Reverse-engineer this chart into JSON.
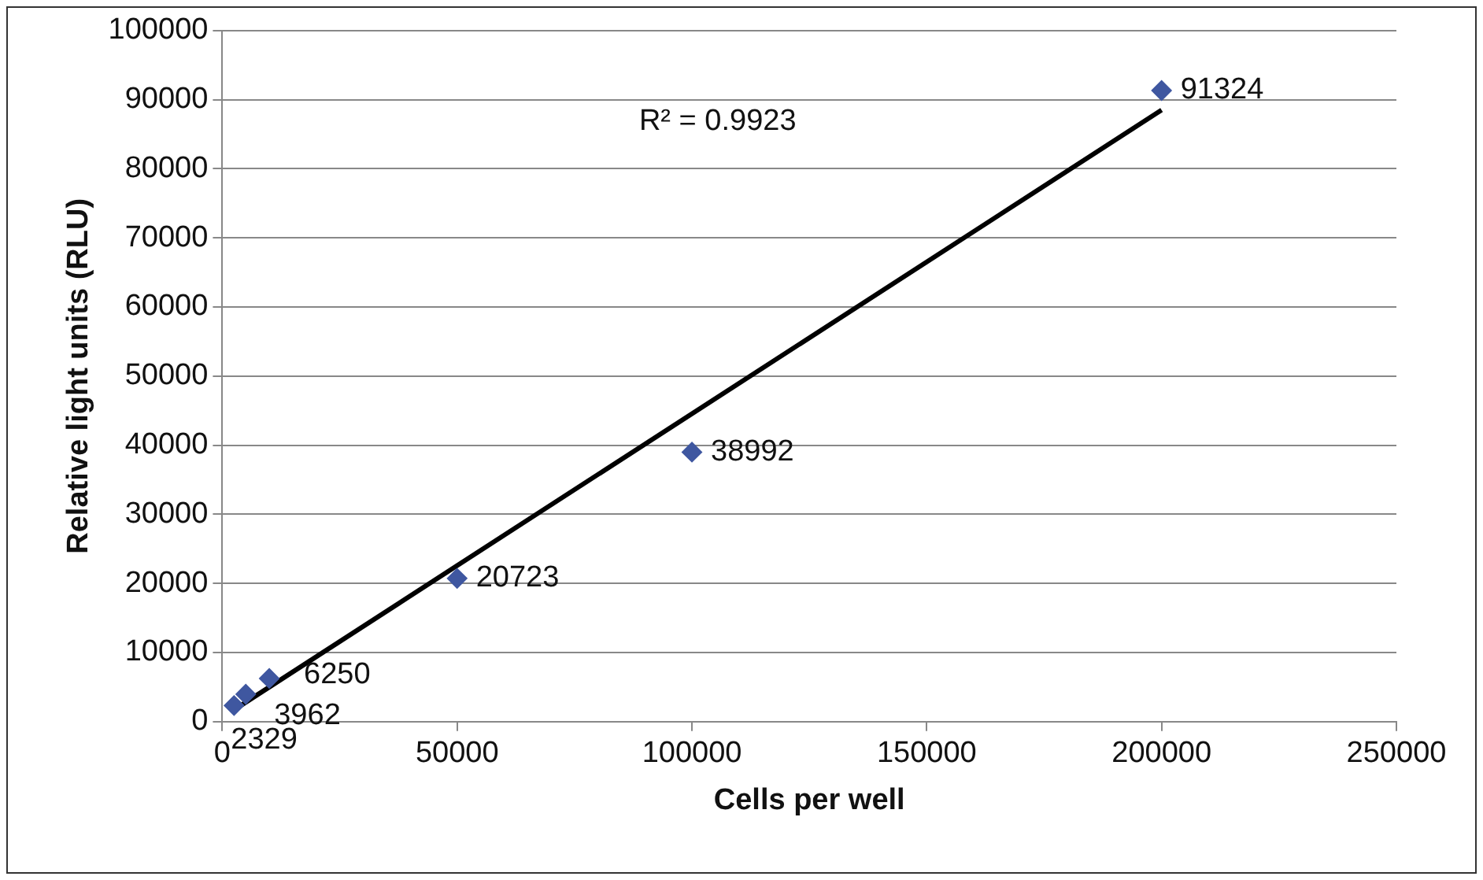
{
  "chart_data": {
    "type": "scatter",
    "xlabel": "Cells per well",
    "ylabel": "Relative light units (RLU)",
    "x": [
      2500,
      5000,
      10000,
      50000,
      100000,
      200000
    ],
    "series": [
      {
        "type": "scatter",
        "color": "#3f57a0",
        "values": [
          2329,
          3962,
          6250,
          20723,
          38992,
          91324
        ],
        "marker": "diamond",
        "value_labels": [
          "2329",
          "3962",
          "6250",
          "20723",
          "38992",
          "91324"
        ]
      },
      {
        "type": "line",
        "color": "#000000",
        "x": [
          2500,
          200000
        ],
        "values": [
          1700,
          88500
        ],
        "marker": "none",
        "line_style": "solid"
      }
    ],
    "annotations": [
      "R² = 0.9923"
    ],
    "xlim": [
      0,
      250000
    ],
    "xticks": [
      0,
      50000,
      100000,
      150000,
      200000,
      250000
    ],
    "ylim": [
      0,
      100000
    ],
    "yticks": [
      0,
      10000,
      20000,
      30000,
      40000,
      50000,
      60000,
      70000,
      80000,
      90000,
      100000
    ],
    "grid": "y",
    "legend": false
  }
}
